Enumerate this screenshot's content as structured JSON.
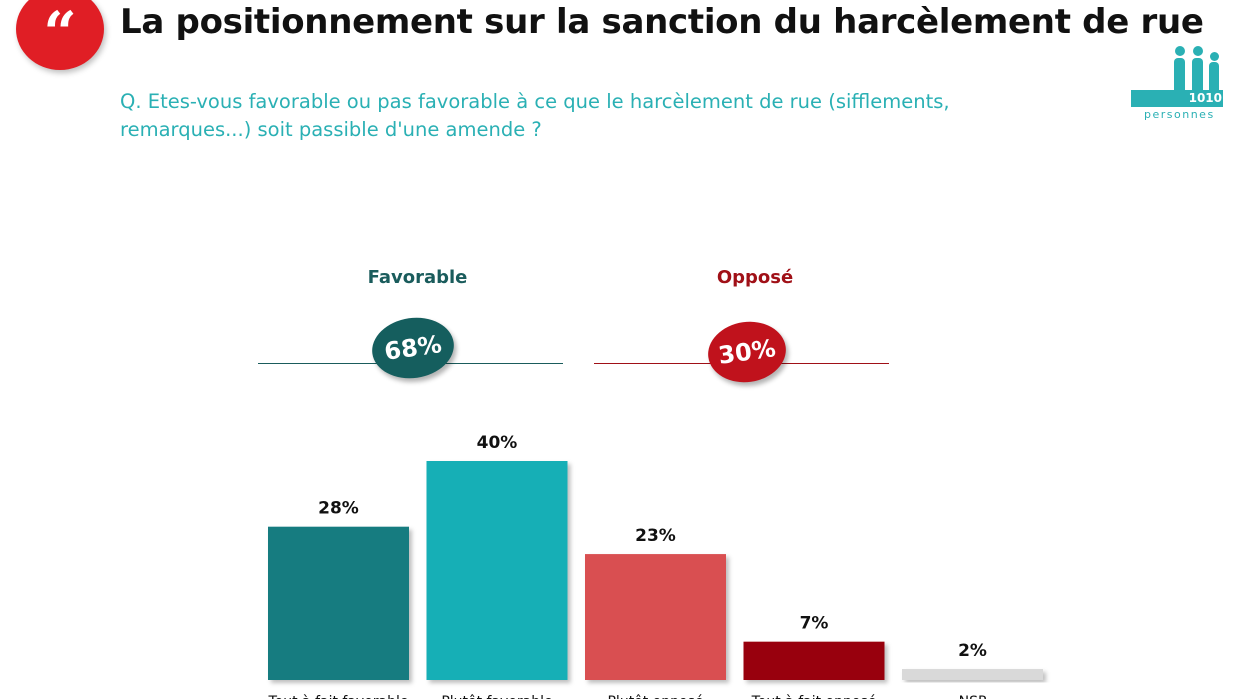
{
  "header": {
    "quote_glyph": "“",
    "title": "La positionnement sur la sanction du harcèlement de rue",
    "question": "Q. Etes-vous favorable ou pas favorable à ce que le harcèlement de rue (sifflements, remarques...) soit passible d'une amende ?"
  },
  "sample": {
    "count": "1010",
    "label": "personnes"
  },
  "groups": [
    {
      "label": "Favorable",
      "value": "68%",
      "color": "#1a6b6b"
    },
    {
      "label": "Opposé",
      "value": "30%",
      "color": "#c0121c"
    }
  ],
  "colors": {
    "accent": "#2ab0b4",
    "red": "#e01e25"
  },
  "chart_data": {
    "type": "bar",
    "categories": [
      "Tout à fait favorable",
      "Plutôt favorable",
      "Plutôt opposé",
      "Tout à fait opposé",
      "NSP"
    ],
    "values": [
      28,
      40,
      23,
      7,
      2
    ],
    "value_labels": [
      "28%",
      "40%",
      "23%",
      "7%",
      "2%"
    ],
    "colors": [
      "#127b80",
      "#14afb6",
      "#d94f51",
      "#980008",
      "#d9d9d9"
    ],
    "ylim": [
      0,
      40
    ]
  }
}
